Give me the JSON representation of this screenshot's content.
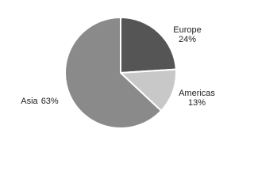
{
  "chart_data": {
    "type": "pie",
    "categories": [
      "Europe",
      "Americas",
      "Asia"
    ],
    "values": [
      24,
      13,
      63
    ],
    "value_labels": [
      "24%",
      "13%",
      "63%"
    ],
    "colors": [
      "#555555",
      "#c8c8c8",
      "#8a8a8a"
    ]
  }
}
